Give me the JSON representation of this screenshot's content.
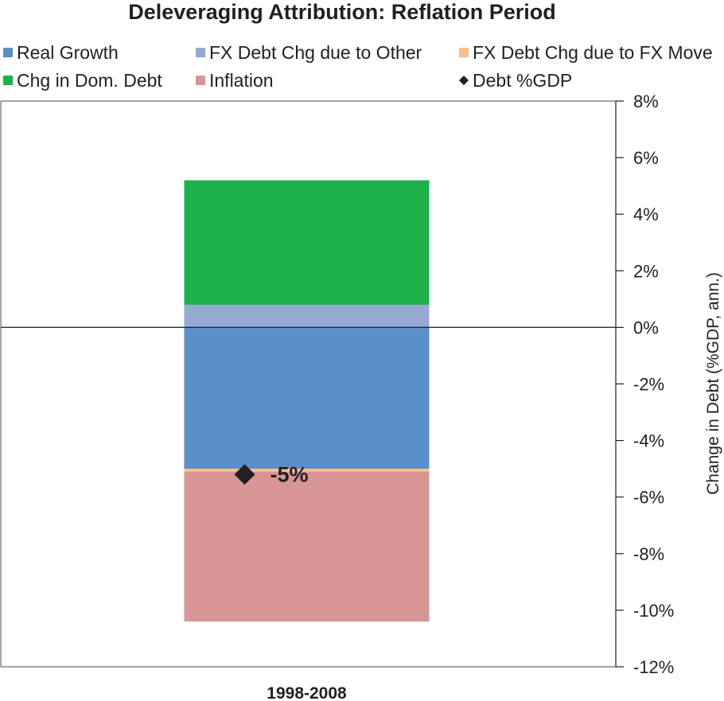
{
  "chart_data": {
    "type": "bar",
    "stacked": true,
    "title": "Deleveraging Attribution: Reflation Period",
    "categories": [
      "1998-2008"
    ],
    "ylabel": "Change in Debt (%GDP, ann.)",
    "ylim": [
      -12,
      8
    ],
    "yticks": [
      8,
      6,
      4,
      2,
      0,
      -2,
      -4,
      -6,
      -8,
      -10,
      -12
    ],
    "ytick_labels": [
      "8%",
      "6%",
      "4%",
      "2%",
      "0%",
      "-2%",
      "-4%",
      "-6%",
      "-8%",
      "-10%",
      "-12%"
    ],
    "y_axis_side": "right",
    "grid": false,
    "legend_position": "top",
    "series": [
      {
        "name": "Real Growth",
        "values": [
          -5.0
        ],
        "color": "#5b8fca"
      },
      {
        "name": "FX Debt Chg due to Other",
        "values": [
          0.8
        ],
        "color": "#95a9d3"
      },
      {
        "name": "FX Debt Chg due to FX Move",
        "values": [
          -0.1
        ],
        "color": "#f9c08c"
      },
      {
        "name": "Chg in Dom. Debt",
        "values": [
          4.4
        ],
        "color": "#1db04b"
      },
      {
        "name": "Inflation",
        "values": [
          -5.3
        ],
        "color": "#d89595"
      }
    ],
    "markers": [
      {
        "name": "Debt %GDP",
        "values": [
          -5.2
        ],
        "color": "#231f20",
        "label": "-5%"
      }
    ]
  }
}
